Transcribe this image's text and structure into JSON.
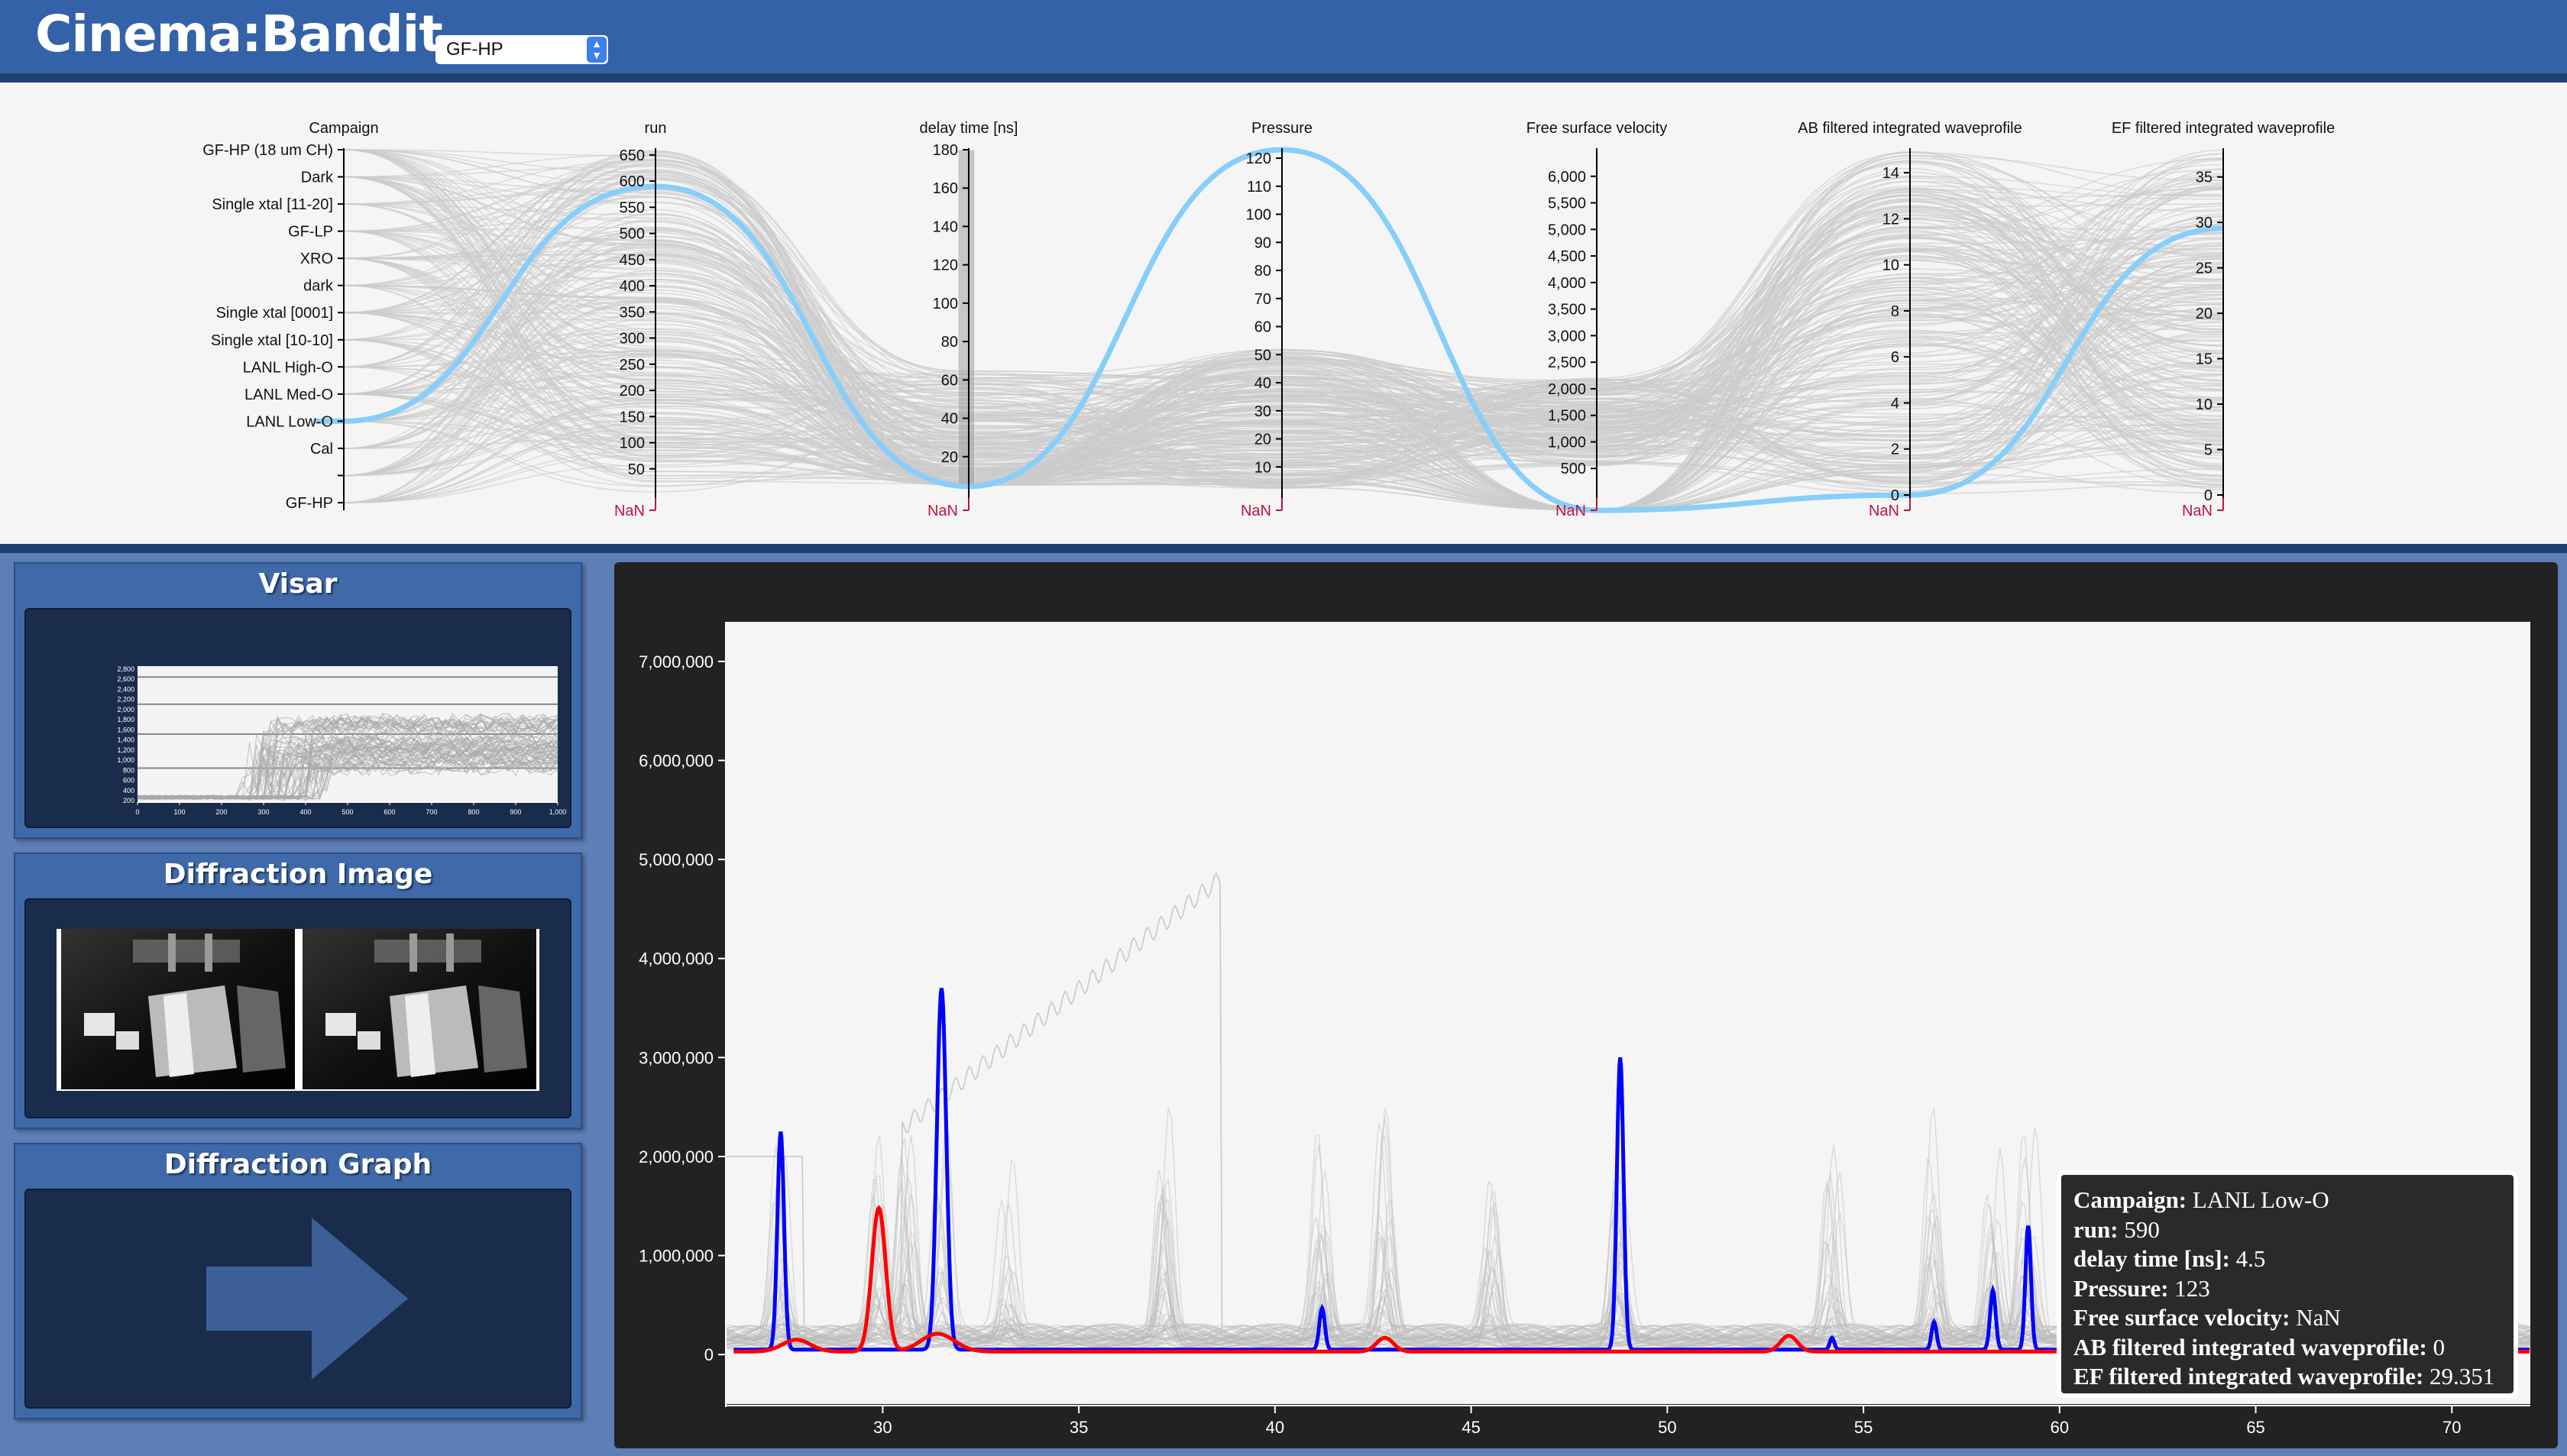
{
  "header": {
    "title": "Cinema:Bandit",
    "dataset_selected": "GF-HP"
  },
  "parallel_coords": {
    "axes": [
      {
        "label": "Campaign",
        "type": "categorical",
        "ticks": [
          "GF-HP (18 um CH)",
          "Dark",
          "Single xtal [11-20]",
          "GF-LP",
          "XRO",
          "dark",
          "Single xtal [0001]",
          "Single xtal [10-10]",
          "LANL High-O",
          "LANL Med-O",
          "LANL Low-O",
          "Cal",
          "",
          "GF-HP"
        ]
      },
      {
        "label": "run",
        "min": 0,
        "max": 660,
        "ticks": [
          "650",
          "600",
          "550",
          "500",
          "450",
          "400",
          "350",
          "300",
          "250",
          "200",
          "150",
          "100",
          "50"
        ],
        "tick_values": [
          650,
          600,
          550,
          500,
          450,
          400,
          350,
          300,
          250,
          200,
          150,
          100,
          50
        ],
        "nan": "NaN"
      },
      {
        "label": "delay time [ns]",
        "min": 0,
        "max": 180,
        "ticks": [
          "180",
          "160",
          "140",
          "120",
          "100",
          "80",
          "60",
          "40",
          "20"
        ],
        "tick_values": [
          180,
          160,
          140,
          120,
          100,
          80,
          60,
          40,
          20
        ],
        "nan": "NaN",
        "brush": [
          0,
          180
        ]
      },
      {
        "label": "Pressure",
        "min": 0,
        "max": 123,
        "ticks": [
          "120",
          "110",
          "100",
          "90",
          "80",
          "70",
          "60",
          "50",
          "40",
          "30",
          "20",
          "10"
        ],
        "tick_values": [
          120,
          110,
          100,
          90,
          80,
          70,
          60,
          50,
          40,
          30,
          20,
          10
        ],
        "nan": "NaN"
      },
      {
        "label": "Free surface velocity",
        "min": 0,
        "max": 6500,
        "ticks": [
          "6,000",
          "5,500",
          "5,000",
          "4,500",
          "4,000",
          "3,500",
          "3,000",
          "2,500",
          "2,000",
          "1,500",
          "1,000",
          "500"
        ],
        "tick_values": [
          6000,
          5500,
          5000,
          4500,
          4000,
          3500,
          3000,
          2500,
          2000,
          1500,
          1000,
          500
        ],
        "nan": "NaN"
      },
      {
        "label": "AB filtered integrated waveprofile",
        "min": 0,
        "max": 15,
        "ticks": [
          "14",
          "12",
          "10",
          "8",
          "6",
          "4",
          "2",
          "0"
        ],
        "tick_values": [
          14,
          12,
          10,
          8,
          6,
          4,
          2,
          0
        ],
        "nan": "NaN"
      },
      {
        "label": "EF filtered integrated waveprofile",
        "min": 0,
        "max": 38,
        "ticks": [
          "35",
          "30",
          "25",
          "20",
          "15",
          "10",
          "5",
          "0"
        ],
        "tick_values": [
          35,
          30,
          25,
          20,
          15,
          10,
          5,
          0
        ],
        "nan": "NaN"
      }
    ],
    "highlight_color": "#87cefa",
    "line_color": "#cccccc",
    "nan_color": "#c0143c"
  },
  "sidebar": {
    "panels": [
      {
        "title": "Visar"
      },
      {
        "title": "Diffraction Image"
      },
      {
        "title": "Diffraction Graph"
      }
    ],
    "visar_thumb": {
      "y_ticks": [
        "2,800",
        "2,600",
        "2,400",
        "2,200",
        "2,000",
        "1,800",
        "1,600",
        "1,400",
        "1,200",
        "1,000",
        "800",
        "600",
        "400",
        "200"
      ],
      "x_ticks": [
        "0",
        "100",
        "200",
        "300",
        "400",
        "500",
        "600",
        "700",
        "800",
        "900",
        "1,000"
      ]
    }
  },
  "chart_data": {
    "type": "line",
    "xlabel": "",
    "ylabel": "",
    "xlim": [
      26,
      72
    ],
    "ylim": [
      -500000,
      7400000
    ],
    "x_ticks": [
      30,
      35,
      40,
      45,
      50,
      55,
      60,
      65,
      70
    ],
    "y_ticks": [
      0,
      1000000,
      2000000,
      3000000,
      4000000,
      5000000,
      6000000,
      7000000
    ],
    "y_tick_labels": [
      "0",
      "1,000,000",
      "2,000,000",
      "3,000,000",
      "4,000,000",
      "5,000,000",
      "6,000,000",
      "7,000,000"
    ],
    "grid": false,
    "background_series_color": "#bbbbbb",
    "series": [
      {
        "color": "#0000ff",
        "baseline": 50000,
        "peaks": [
          {
            "x": 27.4,
            "y": 2200000,
            "w": 0.12
          },
          {
            "x": 31.5,
            "y": 3650000,
            "w": 0.17
          },
          {
            "x": 41.2,
            "y": 420000,
            "w": 0.1
          },
          {
            "x": 48.8,
            "y": 2950000,
            "w": 0.12
          },
          {
            "x": 54.2,
            "y": 120000,
            "w": 0.08
          },
          {
            "x": 56.8,
            "y": 280000,
            "w": 0.09
          },
          {
            "x": 58.3,
            "y": 600000,
            "w": 0.1
          },
          {
            "x": 59.2,
            "y": 1250000,
            "w": 0.1
          }
        ]
      },
      {
        "color": "#ff0000",
        "baseline": 30000,
        "peaks": [
          {
            "x": 27.8,
            "y": 120000,
            "w": 0.5
          },
          {
            "x": 29.9,
            "y": 1450000,
            "w": 0.25
          },
          {
            "x": 31.4,
            "y": 180000,
            "w": 0.6
          },
          {
            "x": 42.8,
            "y": 140000,
            "w": 0.3
          },
          {
            "x": 53.1,
            "y": 160000,
            "w": 0.3
          }
        ]
      }
    ]
  },
  "tooltip": [
    {
      "label": "Campaign:",
      "value": "LANL Low-O"
    },
    {
      "label": "run:",
      "value": "590"
    },
    {
      "label": "delay time [ns]:",
      "value": "4.5"
    },
    {
      "label": "Pressure:",
      "value": "123"
    },
    {
      "label": "Free surface velocity:",
      "value": "NaN"
    },
    {
      "label": "AB filtered integrated waveprofile:",
      "value": "0"
    },
    {
      "label": "EF filtered integrated waveprofile:",
      "value": "29.351"
    }
  ]
}
